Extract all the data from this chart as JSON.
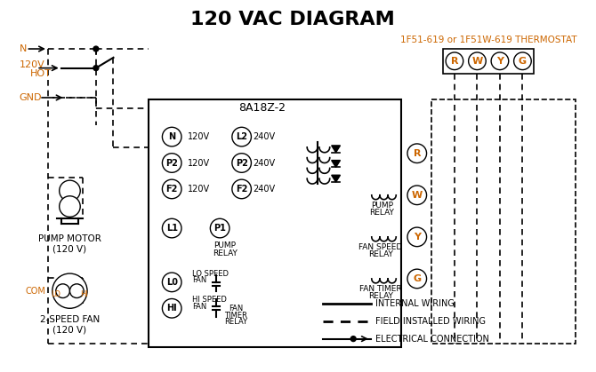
{
  "title": "120 VAC DIAGRAM",
  "title_color": "#000000",
  "orange_color": "#CC6600",
  "bg_color": "#ffffff",
  "thermostat_label": "1F51-619 or 1F51W-619 THERMOSTAT",
  "box8a_label": "8A18Z-2",
  "legend_items": [
    {
      "label": "INTERNAL WIRING",
      "style": "solid"
    },
    {
      "label": "FIELD INSTALLED WIRING",
      "style": "dashed"
    },
    {
      "label": "ELECTRICAL CONNECTION",
      "style": "dot_arrow"
    }
  ],
  "terminal_labels": [
    "R",
    "W",
    "Y",
    "G"
  ],
  "left_labels": [
    "N",
    "120V\nHOT",
    "GND"
  ],
  "pump_motor_label": "PUMP MOTOR\n(120 V)",
  "fan_label": "2-SPEED FAN\n(120 V)"
}
